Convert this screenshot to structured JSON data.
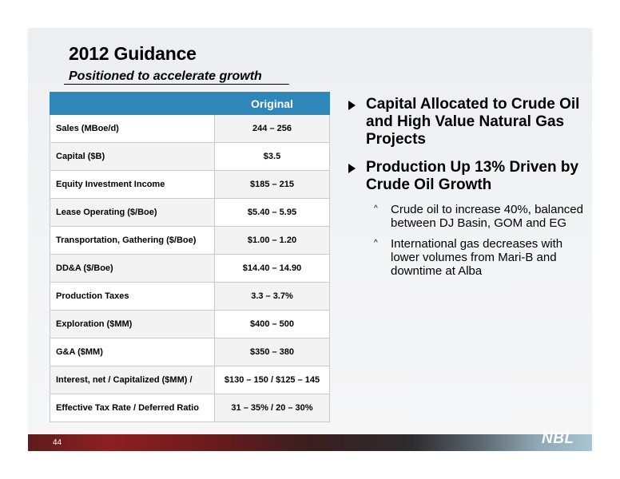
{
  "title": "2012 Guidance",
  "subtitle": "Positioned to accelerate growth",
  "table": {
    "header": [
      "",
      "Original"
    ],
    "rows": [
      {
        "label": "Sales (MBoe/d)",
        "value": "244 – 256"
      },
      {
        "label": "Capital ($B)",
        "value": "$3.5"
      },
      {
        "label": "Equity Investment Income",
        "value": "$185 – 215"
      },
      {
        "label": "Lease Operating ($/Boe)",
        "value": "$5.40 – 5.95"
      },
      {
        "label": "Transportation, Gathering ($/Boe)",
        "value": "$1.00 – 1.20"
      },
      {
        "label": "DD&A ($/Boe)",
        "value": "$14.40 – 14.90"
      },
      {
        "label": "Production Taxes",
        "value": "3.3 – 3.7%"
      },
      {
        "label": "Exploration ($MM)",
        "value": "$400 – 500"
      },
      {
        "label": "G&A ($MM)",
        "value": "$350 – 380"
      },
      {
        "label": "Interest, net / Capitalized ($MM) /",
        "value": "$130 – 150 / $125 – 145"
      },
      {
        "label": "Effective Tax Rate / Deferred Ratio",
        "value": "31 – 35% / 20 – 30%"
      }
    ]
  },
  "bullets": [
    {
      "text": "Capital Allocated to Crude Oil and High Value Natural Gas Projects",
      "sub": []
    },
    {
      "text": "Production Up 13% Driven by Crude Oil Growth",
      "sub": [
        "Crude oil to increase 40%, balanced between DJ Basin, GOM and EG",
        "International gas decreases with lower volumes from Mari-B and downtime at Alba"
      ]
    }
  ],
  "footer": {
    "page_number": "44",
    "logo_text": "NBL"
  },
  "colors": {
    "table_header": "#2f86b8",
    "background": "#eceef1"
  },
  "icons": {
    "main_bullet": "triangle-right-icon",
    "sub_bullet": "caret-up-icon"
  }
}
